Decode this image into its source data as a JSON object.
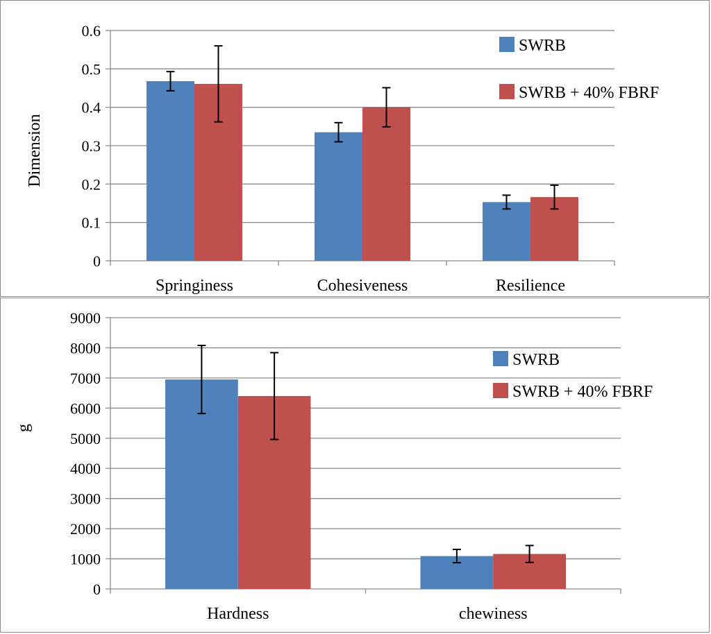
{
  "chart_data": [
    {
      "type": "bar",
      "categories": [
        "Springiness",
        "Cohesiveness",
        "Resilience"
      ],
      "series": [
        {
          "name": "SWRB",
          "color": "#4f81bd",
          "values": [
            0.468,
            0.335,
            0.153
          ],
          "errors": [
            0.025,
            0.025,
            0.018
          ]
        },
        {
          "name": "SWRB + 40% FBRF",
          "color": "#c0504d",
          "values": [
            0.461,
            0.4,
            0.166
          ],
          "errors": [
            0.099,
            0.051,
            0.031
          ]
        }
      ],
      "title": "",
      "xlabel": "",
      "ylabel": "Dimension",
      "ylim": [
        0,
        0.6
      ],
      "yticks": [
        "0",
        "0.1",
        "0.2",
        "0.3",
        "0.4",
        "0.5",
        "0.6"
      ],
      "grid": true,
      "legend": "top-right"
    },
    {
      "type": "bar",
      "categories": [
        "Hardness",
        "chewiness"
      ],
      "series": [
        {
          "name": "SWRB",
          "color": "#4f81bd",
          "values": [
            6950,
            1090
          ],
          "errors": [
            1130,
            220
          ]
        },
        {
          "name": "SWRB + 40% FBRF",
          "color": "#c0504d",
          "values": [
            6400,
            1160
          ],
          "errors": [
            1440,
            280
          ]
        }
      ],
      "title": "",
      "xlabel": "",
      "ylabel": "g",
      "ylim": [
        0,
        9000
      ],
      "yticks": [
        "0",
        "1000",
        "2000",
        "3000",
        "4000",
        "5000",
        "6000",
        "7000",
        "8000",
        "9000"
      ],
      "grid": true,
      "legend": "top-right"
    }
  ]
}
